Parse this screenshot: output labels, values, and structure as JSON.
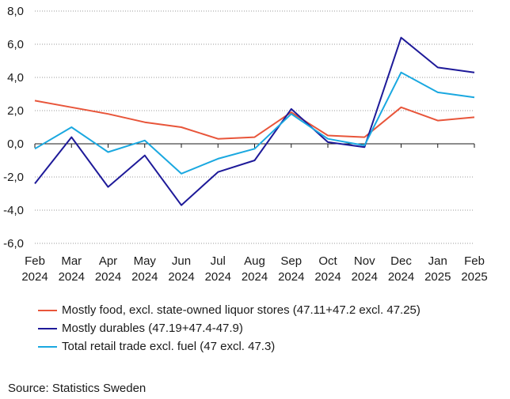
{
  "chart_data": {
    "type": "line",
    "title": "",
    "xlabel": "",
    "ylabel": "",
    "ylim": [
      -6,
      8
    ],
    "ytick_step": 2,
    "ytick_labels": [
      "-6,0",
      "-4,0",
      "-2,0",
      "0,0",
      "2,0",
      "4,0",
      "6,0",
      "8,0"
    ],
    "categories": [
      [
        "Feb",
        "2024"
      ],
      [
        "Mar",
        "2024"
      ],
      [
        "Apr",
        "2024"
      ],
      [
        "May",
        "2024"
      ],
      [
        "Jun",
        "2024"
      ],
      [
        "Jul",
        "2024"
      ],
      [
        "Aug",
        "2024"
      ],
      [
        "Sep",
        "2024"
      ],
      [
        "Oct",
        "2024"
      ],
      [
        "Nov",
        "2024"
      ],
      [
        "Dec",
        "2024"
      ],
      [
        "Jan",
        "2025"
      ],
      [
        "Feb",
        "2025"
      ]
    ],
    "grid": "horizontal dotted",
    "legend_position": "bottom",
    "series": [
      {
        "name": "Mostly food, excl. state-owned liquor stores (47.11+47.2 excl. 47.25)",
        "color": "#e8553a",
        "values": [
          2.6,
          2.2,
          1.8,
          1.3,
          1.0,
          0.3,
          0.4,
          1.9,
          0.5,
          0.4,
          2.2,
          1.4,
          1.6
        ]
      },
      {
        "name": "Mostly durables (47.19+47.4-47.9)",
        "color": "#1e1a99",
        "values": [
          -2.4,
          0.4,
          -2.6,
          -0.7,
          -3.7,
          -1.7,
          -1.0,
          2.1,
          0.1,
          -0.2,
          6.4,
          4.6,
          4.3
        ]
      },
      {
        "name": "Total retail trade excl. fuel (47 excl. 47.3)",
        "color": "#1aa8e0",
        "values": [
          -0.3,
          1.0,
          -0.5,
          0.2,
          -1.8,
          -0.9,
          -0.3,
          1.8,
          0.3,
          -0.1,
          4.3,
          3.1,
          2.8
        ]
      }
    ]
  },
  "source": "Source: Statistics Sweden"
}
